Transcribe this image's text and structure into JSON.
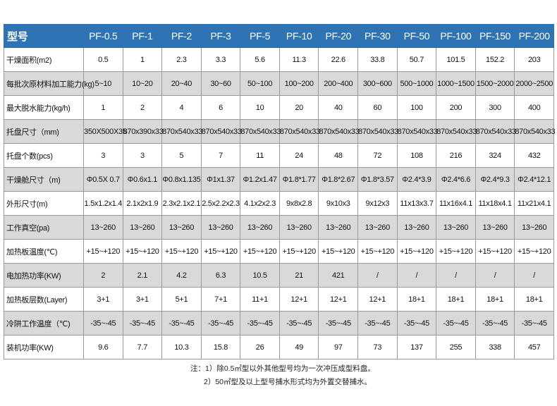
{
  "table": {
    "header_label": "型号",
    "models": [
      "PF-0.5",
      "PF-1",
      "PF-2",
      "PF-3",
      "PF-5",
      "PF-10",
      "PF-20",
      "PF-30",
      "PF-50",
      "PF-100",
      "PF-150",
      "PF-200"
    ],
    "rows": [
      {
        "label": "干燥面积(m2)",
        "values": [
          "0.5",
          "1",
          "2.3",
          "3.3",
          "5.6",
          "11.3",
          "22.6",
          "33.8",
          "50.7",
          "101.5",
          "152.2",
          "203"
        ]
      },
      {
        "label": "每批次原材料加工能力(kg)",
        "values": [
          "5~10",
          "10~20",
          "20~40",
          "30~60",
          "50~100",
          "100~200",
          "200~400",
          "300~600",
          "500~1000",
          "1000~1500",
          "1500~2000",
          "2000~2500"
        ]
      },
      {
        "label": "最大脱水能力(kg/h)",
        "values": [
          "1",
          "2",
          "4",
          "6",
          "10",
          "20",
          "40",
          "60",
          "100",
          "200",
          "300",
          "400"
        ]
      },
      {
        "label": "托盘尺寸（mm)",
        "values": [
          "350X500X35",
          "870x390x33",
          "870x540x33",
          "870x540x33",
          "870x540x33",
          "870x540x33",
          "870x540x33",
          "870x540x33",
          "870x540x33",
          "870x540x33",
          "870x540x33",
          "870x540x33"
        ]
      },
      {
        "label": "托盘个数(pcs)",
        "values": [
          "3",
          "3",
          "5",
          "7",
          "11",
          "24",
          "48",
          "72",
          "108",
          "216",
          "324",
          "432"
        ]
      },
      {
        "label": "干燥舱尺寸（m)",
        "values": [
          "Φ0.5X 0.7",
          "Φ0.6x1.1",
          "Φ0.8x1.135",
          "Φ1x1.37",
          "Φ1.2x1.47",
          "Φ1.8*1.77",
          "Φ1.8*2.67",
          "Φ1.8*3.57",
          "Φ2.4*3.9",
          "Φ2.4*6.6",
          "Φ2.4*9.3",
          "Φ2.4*12.1"
        ]
      },
      {
        "label": "外形尺寸(m)",
        "values": [
          "1.5x1.2x1.4",
          "2.1x2x1.9",
          "2.3x2.1x2.1",
          "2.5x2.2x2.3",
          "4.1x2x2.3",
          "9x8x2.8",
          "9x10x3",
          "9x12x3",
          "11x13x3.7",
          "11x16x4.1",
          "11x18x4.1",
          "11x21x4.1"
        ]
      },
      {
        "label": "工作真空(pa)",
        "values": [
          "13~260",
          "13~260",
          "13~260",
          "13~260",
          "13~260",
          "13~260",
          "13~260",
          "13~260",
          "13~260",
          "13~260",
          "13~260",
          "13~260"
        ]
      },
      {
        "label": "加热板温度(℃)",
        "values": [
          "+15~+120",
          "+15~+120",
          "+15~+120",
          "+15~+120",
          "+15~+120",
          "+15~+120",
          "+15~+120",
          "+15~+120",
          "+15~+120",
          "+15~+120",
          "+15~+120",
          "+15~+120"
        ]
      },
      {
        "label": "电加热功率(KW)",
        "values": [
          "2",
          "2.1",
          "4.2",
          "6.3",
          "10.5",
          "21",
          "421",
          "/",
          "/",
          "/",
          "/",
          "/"
        ]
      },
      {
        "label": "加热板层数(Layer)",
        "values": [
          "3+1",
          "3+1",
          "5+1",
          "7+1",
          "11+1",
          "12+1",
          "12+1",
          "12+1",
          "18+1",
          "18+1",
          "18+1",
          "18+1"
        ]
      },
      {
        "label": "冷阱工作温度（℃)",
        "values": [
          "-35~-45",
          "-35~-45",
          "-35~-45",
          "-35~-45",
          "-35~-45",
          "-35~-45",
          "-35~-45",
          "-35~-45",
          "-35~-45",
          "-35~-45",
          "-35~-45",
          "-35~-45"
        ]
      },
      {
        "label": "装机功率(KW)",
        "values": [
          "9.6",
          "7.7",
          "10.3",
          "15.8",
          "26",
          "49",
          "97",
          "73",
          "137",
          "255",
          "338",
          "457"
        ]
      }
    ]
  },
  "notes": [
    "注：1）除0.5㎡型以外其他型号均为一次冲压成型料盘。",
    "2）50㎡型及以上型号捕水形式均为外置交替捕水。"
  ],
  "colors": {
    "header_bg": "#2e74b5",
    "alt_row_bg": "#d9d9d9"
  }
}
